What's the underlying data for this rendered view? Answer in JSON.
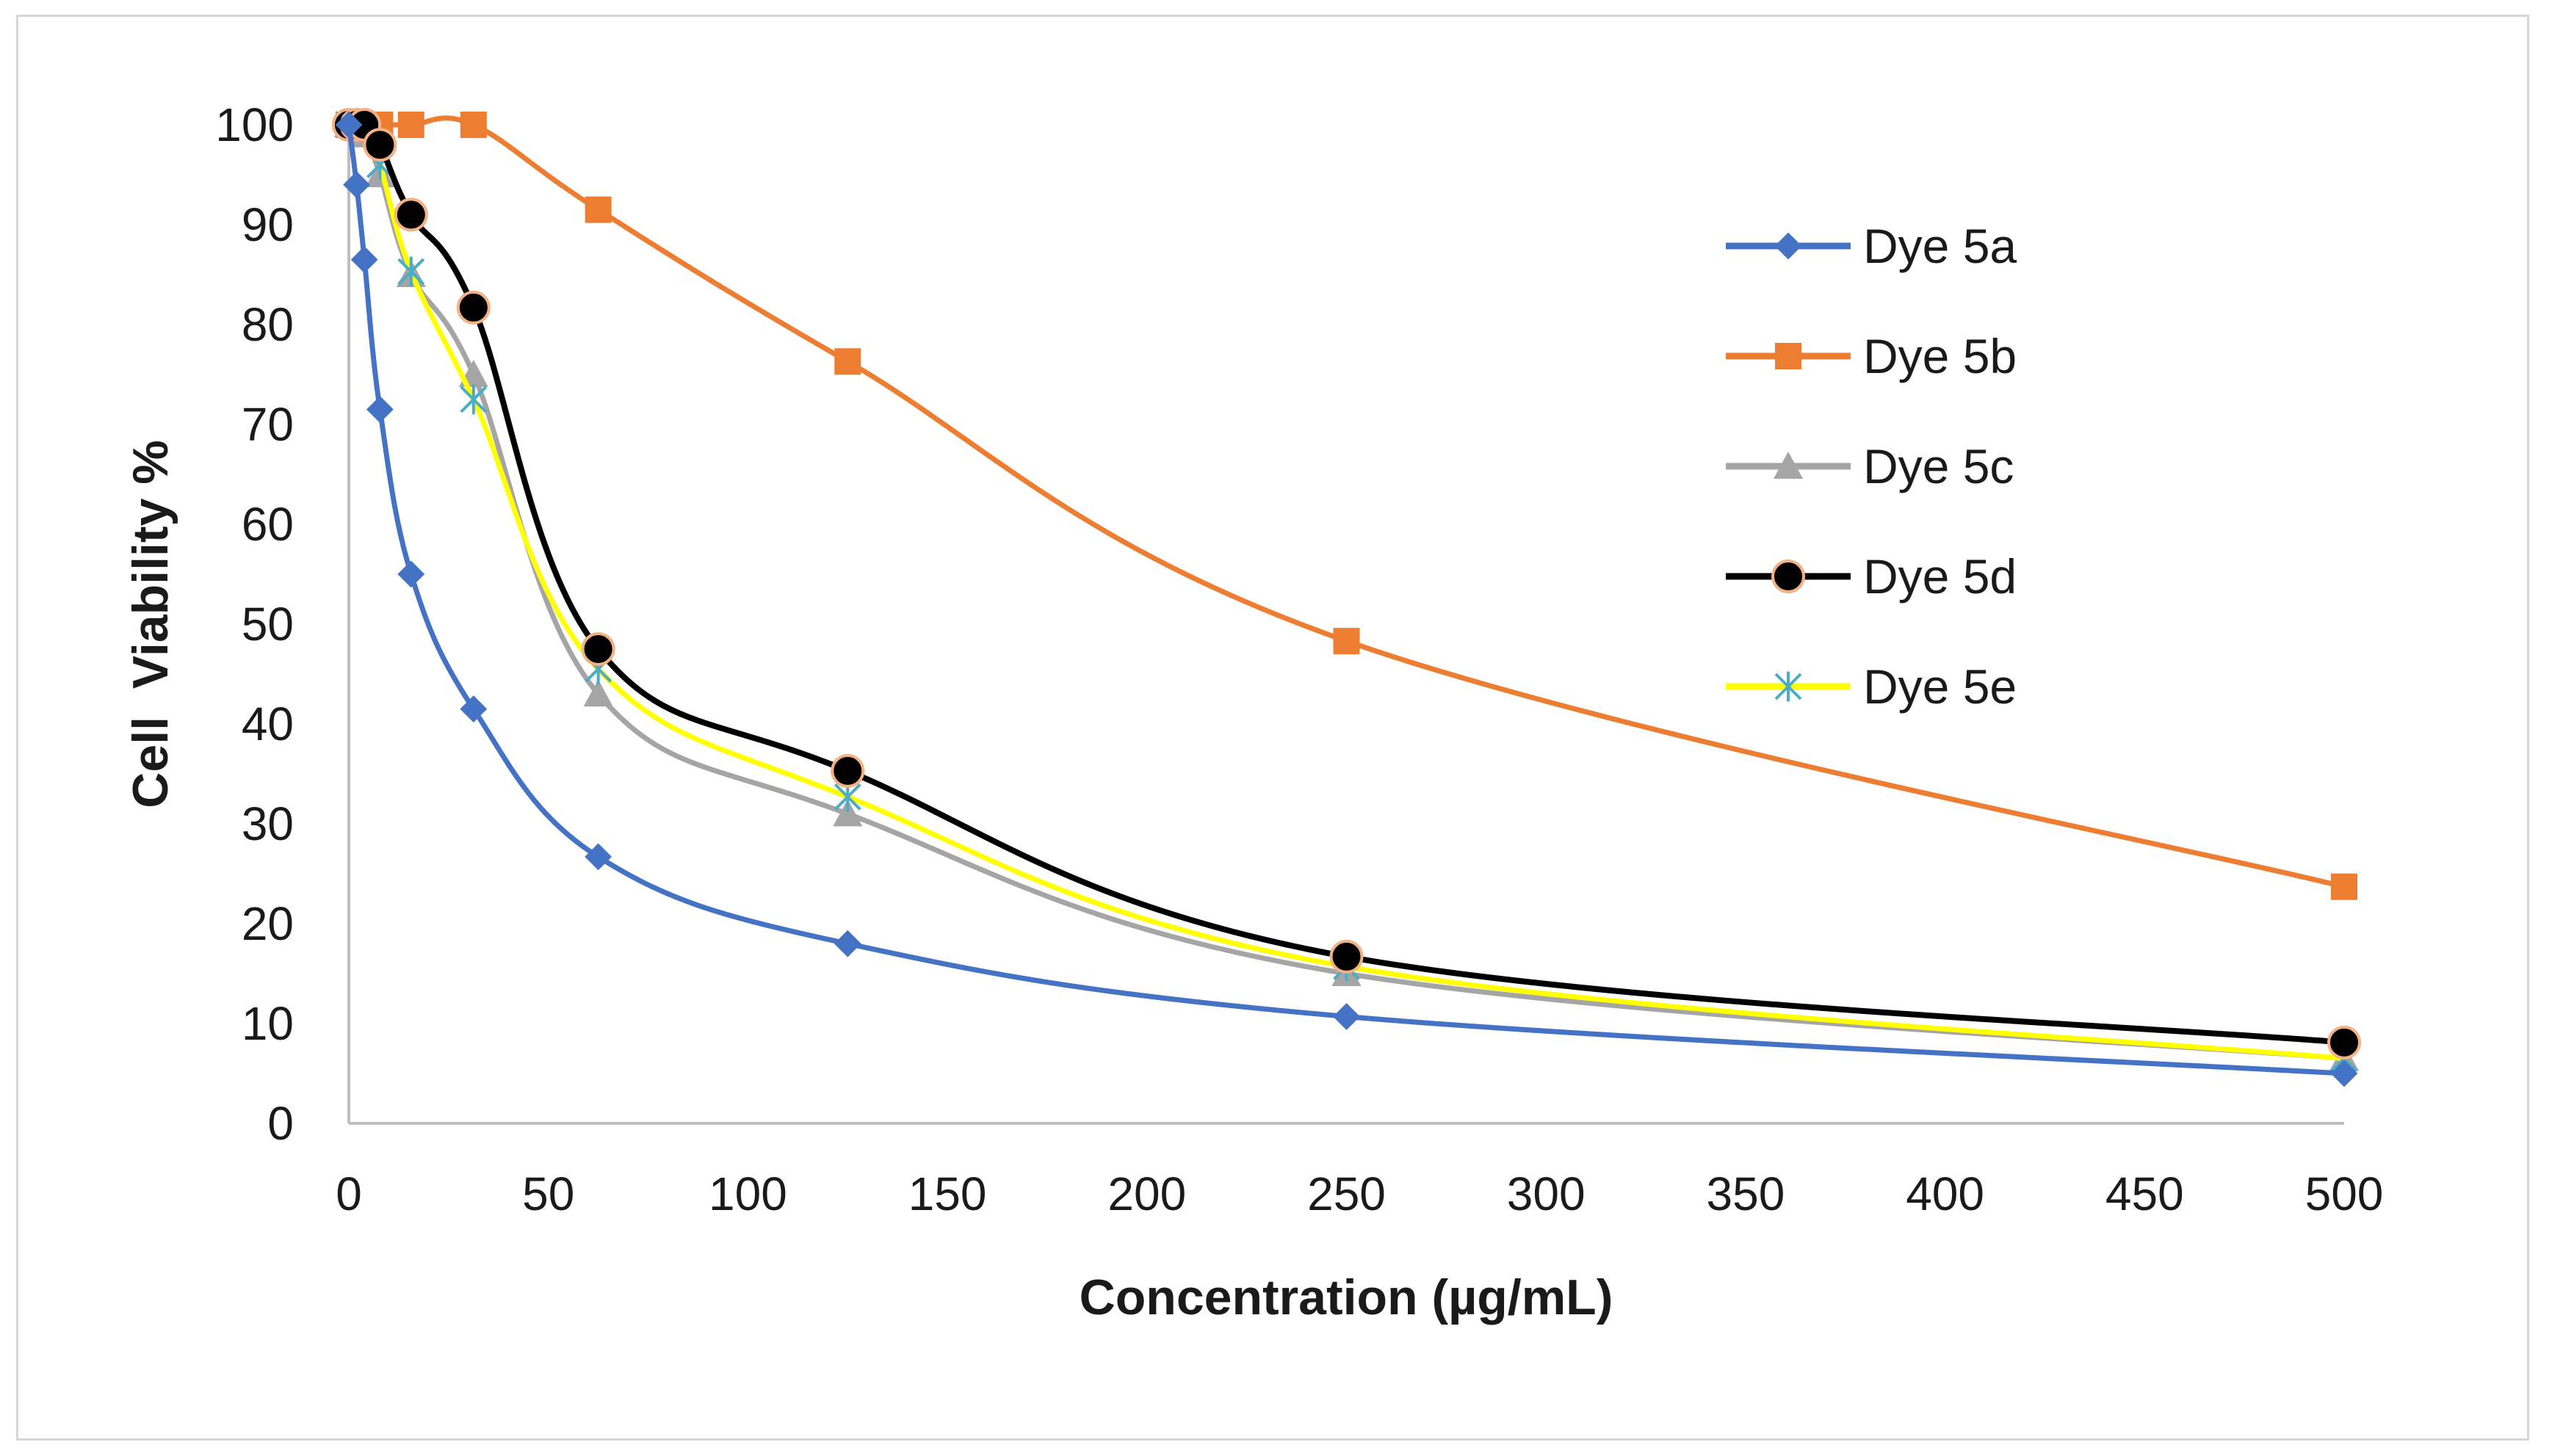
{
  "chart_data": {
    "type": "line",
    "title": "",
    "xlabel": "Concentration (µg/mL)",
    "ylabel": "Cell  Viability %",
    "xlim": [
      0,
      500
    ],
    "ylim": [
      0,
      100
    ],
    "x_ticks": [
      0,
      50,
      100,
      150,
      200,
      250,
      300,
      350,
      400,
      450,
      500
    ],
    "y_ticks": [
      0,
      10,
      20,
      30,
      40,
      50,
      60,
      70,
      80,
      90,
      100
    ],
    "grid": false,
    "legend_position": "right",
    "x": [
      0,
      1.95,
      3.9,
      7.8,
      15.6,
      31.25,
      62.5,
      125,
      250,
      500
    ],
    "series": [
      {
        "name": "Dye 5a",
        "color": "#4472C4",
        "marker": "diamond",
        "values": [
          100,
          94,
          86.5,
          71.5,
          55,
          41.5,
          26.7,
          18,
          10.7,
          5
        ]
      },
      {
        "name": "Dye 5b",
        "color": "#ED7D31",
        "marker": "square",
        "values": [
          100,
          100,
          100,
          100,
          100,
          100,
          91.5,
          76.3,
          48.3,
          23.7
        ]
      },
      {
        "name": "Dye 5c",
        "color": "#A5A5A5",
        "marker": "triangle",
        "values": [
          100,
          100,
          99,
          95,
          85,
          75,
          43,
          31,
          15,
          6.5
        ]
      },
      {
        "name": "Dye 5d",
        "color": "#000000",
        "marker": "circle",
        "values": [
          100,
          100,
          100,
          98,
          91,
          81.7,
          47.5,
          35.3,
          16.7,
          8.1
        ]
      },
      {
        "name": "Dye 5e",
        "color": "#FFFF00",
        "marker": "star",
        "values": [
          100,
          100,
          99.5,
          96,
          85.3,
          72.5,
          45.5,
          32.7,
          15.7,
          6.5
        ]
      }
    ]
  }
}
